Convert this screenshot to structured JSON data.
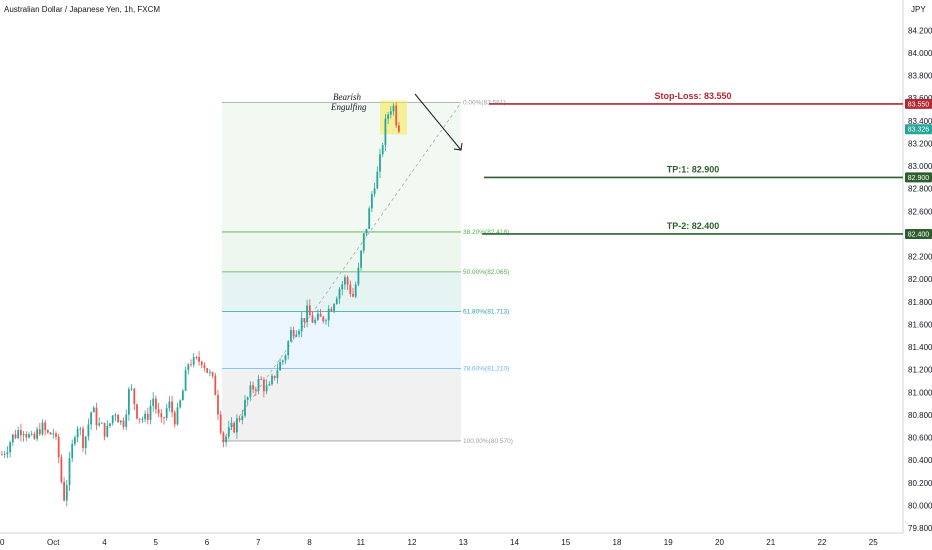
{
  "header": {
    "title": "Australian Dollar / Japanese Yen, 1h, FXCM"
  },
  "colors": {
    "up": "#26a69a",
    "down": "#ef5350",
    "stop_loss": "#b22833",
    "take_profit": "#2e5e2e",
    "last_price": "#26a69a",
    "fib_green": "#4caf50",
    "fib_teal": "#26a69a",
    "fib_blue": "#64b5f6",
    "fib_grey": "#9e9e9e",
    "highlight": "#f5e94b"
  },
  "chart_data": {
    "type": "candlestick",
    "symbol": "AUDJPY",
    "timeframe": "1h",
    "ylim": [
      79.8,
      84.6
    ],
    "y_ticks": [
      "79.800",
      "80.000",
      "80.200",
      "80.400",
      "80.600",
      "80.800",
      "81.000",
      "81.200",
      "81.400",
      "81.600",
      "81.800",
      "82.000",
      "82.200",
      "82.400",
      "82.600",
      "82.800",
      "83.000",
      "83.200",
      "83.400",
      "83.600",
      "83.800",
      "84.000",
      "84.200"
    ],
    "y_unit": "JPY",
    "x_ticks": [
      {
        "label": "0",
        "t": 0
      },
      {
        "label": "Oct",
        "t": 1
      },
      {
        "label": "4",
        "t": 2
      },
      {
        "label": "5",
        "t": 3
      },
      {
        "label": "6",
        "t": 4
      },
      {
        "label": "7",
        "t": 5
      },
      {
        "label": "8",
        "t": 6
      },
      {
        "label": "11",
        "t": 7
      },
      {
        "label": "12",
        "t": 8
      },
      {
        "label": "13",
        "t": 9
      },
      {
        "label": "14",
        "t": 10
      },
      {
        "label": "15",
        "t": 11
      },
      {
        "label": "18",
        "t": 12
      },
      {
        "label": "19",
        "t": 13
      },
      {
        "label": "20",
        "t": 14
      },
      {
        "label": "21",
        "t": 15
      },
      {
        "label": "22",
        "t": 16
      },
      {
        "label": "25",
        "t": 17
      }
    ],
    "path": [
      [
        0,
        80.45
      ],
      [
        0.2,
        80.6
      ],
      [
        0.4,
        80.7
      ],
      [
        0.6,
        80.55
      ],
      [
        0.75,
        80.7
      ],
      [
        0.9,
        80.62
      ],
      [
        1.0,
        80.65
      ],
      [
        1.1,
        80.45
      ],
      [
        1.2,
        80.05
      ],
      [
        1.3,
        80.3
      ],
      [
        1.45,
        80.75
      ],
      [
        1.6,
        80.55
      ],
      [
        1.75,
        80.85
      ],
      [
        1.9,
        80.7
      ],
      [
        2.05,
        80.65
      ],
      [
        2.2,
        80.85
      ],
      [
        2.35,
        80.7
      ],
      [
        2.5,
        81.05
      ],
      [
        2.65,
        80.8
      ],
      [
        2.8,
        80.75
      ],
      [
        2.95,
        80.95
      ],
      [
        3.1,
        80.7
      ],
      [
        3.25,
        80.9
      ],
      [
        3.4,
        80.75
      ],
      [
        3.55,
        81.05
      ],
      [
        3.65,
        81.3
      ],
      [
        3.75,
        81.25
      ],
      [
        3.9,
        81.3
      ],
      [
        4.05,
        81.15
      ],
      [
        4.15,
        81.05
      ],
      [
        4.25,
        80.75
      ],
      [
        4.32,
        80.58
      ],
      [
        4.45,
        80.65
      ],
      [
        4.6,
        80.75
      ],
      [
        4.75,
        80.9
      ],
      [
        4.9,
        81.05
      ],
      [
        5.05,
        81.1
      ],
      [
        5.2,
        81.0
      ],
      [
        5.35,
        81.2
      ],
      [
        5.5,
        81.3
      ],
      [
        5.65,
        81.55
      ],
      [
        5.8,
        81.6
      ],
      [
        5.95,
        81.7
      ],
      [
        6.1,
        81.62
      ],
      [
        6.25,
        81.65
      ],
      [
        6.4,
        81.75
      ],
      [
        6.55,
        81.9
      ],
      [
        6.7,
        82.0
      ],
      [
        6.85,
        81.85
      ],
      [
        6.95,
        82.05
      ],
      [
        7.05,
        82.35
      ],
      [
        7.15,
        82.55
      ],
      [
        7.25,
        82.85
      ],
      [
        7.35,
        82.95
      ],
      [
        7.45,
        83.3
      ],
      [
        7.55,
        83.5
      ],
      [
        7.62,
        83.56
      ],
      [
        7.7,
        83.4
      ],
      [
        7.78,
        83.33
      ]
    ],
    "fibonacci": {
      "levels": [
        {
          "ratio": "0.00%",
          "price": 83.561,
          "label": "0.00%(83.561)"
        },
        {
          "ratio": "38.20%",
          "price": 82.418,
          "label": "38.20%(82.418)"
        },
        {
          "ratio": "50.00%",
          "price": 82.065,
          "label": "50.00%(82.065)"
        },
        {
          "ratio": "61.80%",
          "price": 81.713,
          "label": "61.80%(81.713)"
        },
        {
          "ratio": "78.60%",
          "price": 81.21,
          "label": "78.60%(81.210)"
        },
        {
          "ratio": "100.00%",
          "price": 80.57,
          "label": "100.00%(80.570)"
        }
      ],
      "t_start": 4.3,
      "t_end": 9.0
    },
    "trade_levels": [
      {
        "name": "stop-loss",
        "label": "Stop-Loss: 83.550",
        "price": 83.55,
        "tag": "83.550",
        "t_start": 9.6
      },
      {
        "name": "tp1",
        "label": "TP:1: 82.900",
        "price": 82.9,
        "tag": "82.900",
        "t_start": 9.5
      },
      {
        "name": "tp2",
        "label": "TP-2: 82.400",
        "price": 82.4,
        "tag": "82.400",
        "t_start": 9.45
      }
    ],
    "last_price": {
      "price": 83.326,
      "tag": "83.326"
    },
    "annotation": {
      "line1": "Bearish",
      "line2": "Engulfing",
      "t": 7.3,
      "price": 83.45
    },
    "highlight": {
      "t_start": 7.45,
      "t_end": 8.0,
      "price_high": 83.58,
      "price_low": 83.28
    },
    "arrow": {
      "t_start": 8.1,
      "price_start": 83.42,
      "t_end": 9.05,
      "price_end": 82.95
    }
  }
}
